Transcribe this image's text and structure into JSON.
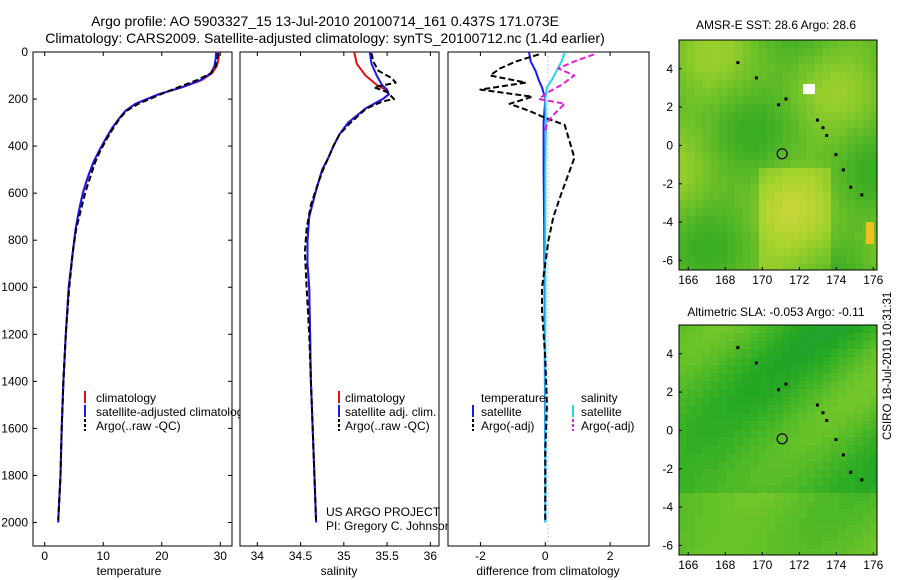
{
  "header": {
    "line1": "Argo profile: AO 5903327_15 13-Jul-2010 20100714_161 0.437S 171.073E",
    "line2": "Climatology: CARS2009. Satellite-adjusted climatology: synTS_20100712.nc (1.4d earlier)"
  },
  "side_text": "CSIRO 18-Jul-2010 10:31:31",
  "project": {
    "line1": "US ARGO PROJECT",
    "line2": "PI: Gregory C. Johnson"
  },
  "colors": {
    "climatology": "#e01010",
    "satellite": "#1a1aee",
    "argo": "#000000",
    "satellite_salinity": "#22d8e8",
    "argo_salinity": "#e020d8",
    "map_base": "#44cc33",
    "map_land": "#ffffff"
  },
  "chart_data": [
    {
      "id": "temperature",
      "type": "line",
      "xlabel": "temperature",
      "ylabel": "",
      "xlim": [
        -2,
        32
      ],
      "ylim": [
        2100,
        0
      ],
      "y_reversed": true,
      "xticks": [
        0,
        10,
        20,
        30
      ],
      "yticks": [
        0,
        200,
        400,
        600,
        800,
        1000,
        1200,
        1400,
        1600,
        1800,
        2000
      ],
      "legend": {
        "position": "lower-right",
        "entries": [
          "climatology",
          "satellite-adjusted climatology",
          "Argo(..raw -QC)"
        ]
      },
      "series": [
        {
          "name": "climatology",
          "color": "#e01010",
          "style": "solid",
          "x": [
            29.8,
            29.7,
            29.4,
            28.6,
            26.8,
            23.5,
            19.5,
            15.5,
            13.8,
            12.8,
            11.6,
            10.4,
            9.3,
            8.3,
            7.4,
            6.5,
            5.8,
            5.3,
            4.8,
            4.1,
            3.6,
            3.2,
            2.9,
            2.7,
            2.5,
            2.3
          ],
          "y": [
            0,
            30,
            60,
            90,
            120,
            150,
            180,
            220,
            250,
            280,
            320,
            370,
            420,
            470,
            530,
            600,
            680,
            750,
            850,
            1000,
            1200,
            1400,
            1600,
            1800,
            1900,
            2000
          ]
        },
        {
          "name": "satellite-adjusted climatology",
          "color": "#1a1aee",
          "style": "solid",
          "x": [
            29.3,
            29.2,
            29.0,
            28.4,
            26.6,
            23.4,
            19.4,
            15.5,
            13.8,
            12.8,
            11.6,
            10.4,
            9.3,
            8.3,
            7.4,
            6.5,
            5.8,
            5.3,
            4.8,
            4.1,
            3.6,
            3.2,
            2.9,
            2.7,
            2.5,
            2.3
          ],
          "y": [
            0,
            30,
            60,
            90,
            120,
            150,
            180,
            220,
            250,
            280,
            320,
            370,
            420,
            470,
            530,
            600,
            680,
            750,
            850,
            1000,
            1200,
            1400,
            1600,
            1800,
            1900,
            2000
          ]
        },
        {
          "name": "Argo(..raw -QC)",
          "color": "#000000",
          "style": "dashed",
          "x": [
            29.6,
            29.5,
            29.2,
            28.4,
            26.0,
            22.8,
            19.8,
            16.0,
            14.0,
            12.9,
            11.8,
            10.6,
            9.5,
            8.6,
            7.8,
            6.9,
            6.1,
            5.4,
            4.8,
            4.2,
            3.6,
            3.2,
            2.9,
            2.7,
            2.5,
            2.3
          ],
          "y": [
            5,
            30,
            60,
            90,
            120,
            150,
            180,
            220,
            250,
            280,
            320,
            370,
            420,
            470,
            530,
            600,
            680,
            750,
            850,
            1000,
            1200,
            1400,
            1600,
            1800,
            1900,
            1990
          ]
        }
      ]
    },
    {
      "id": "salinity",
      "type": "line",
      "xlabel": "salinity",
      "ylabel": "",
      "xlim": [
        33.8,
        36.1
      ],
      "ylim": [
        2100,
        0
      ],
      "y_reversed": true,
      "xticks": [
        34,
        34.5,
        35,
        35.5,
        36
      ],
      "legend": {
        "position": "lower-right",
        "entries": [
          "climatology",
          "satellite adj. clim.",
          "Argo(..raw -QC)"
        ]
      },
      "series": [
        {
          "name": "climatology",
          "color": "#e01010",
          "style": "solid",
          "x": [
            35.12,
            35.15,
            35.25,
            35.38,
            35.48,
            35.52,
            35.45,
            35.25,
            35.05,
            34.95,
            34.88,
            34.82,
            34.75,
            34.71,
            34.67,
            34.6,
            34.58,
            34.58,
            34.6,
            34.61,
            34.62,
            34.64,
            34.66,
            34.68
          ],
          "y": [
            0,
            50,
            100,
            140,
            160,
            180,
            200,
            240,
            300,
            350,
            400,
            450,
            500,
            550,
            600,
            700,
            800,
            900,
            1000,
            1200,
            1400,
            1600,
            1800,
            2000
          ]
        },
        {
          "name": "satellite adj. clim.",
          "color": "#1a1aee",
          "style": "solid",
          "x": [
            35.3,
            35.32,
            35.38,
            35.44,
            35.5,
            35.52,
            35.45,
            35.25,
            35.05,
            34.95,
            34.88,
            34.82,
            34.75,
            34.71,
            34.67,
            34.6,
            34.58,
            34.58,
            34.6,
            34.61,
            34.62,
            34.64,
            34.66,
            34.68
          ],
          "y": [
            0,
            50,
            100,
            140,
            160,
            180,
            200,
            240,
            300,
            350,
            400,
            450,
            500,
            550,
            600,
            700,
            800,
            900,
            1000,
            1200,
            1400,
            1600,
            1800,
            2000
          ]
        },
        {
          "name": "Argo(..raw -QC)",
          "color": "#000000",
          "style": "dashed",
          "x": [
            35.32,
            35.34,
            35.4,
            35.55,
            35.6,
            35.35,
            35.5,
            35.58,
            35.45,
            35.26,
            35.08,
            34.95,
            34.88,
            34.82,
            34.76,
            34.71,
            34.62,
            34.57,
            34.55,
            34.57,
            34.6,
            34.62,
            34.64,
            34.66,
            34.68
          ],
          "y": [
            5,
            40,
            80,
            110,
            130,
            150,
            170,
            200,
            210,
            240,
            300,
            350,
            400,
            450,
            500,
            550,
            650,
            750,
            850,
            1000,
            1200,
            1400,
            1600,
            1800,
            1990
          ]
        }
      ]
    },
    {
      "id": "difference",
      "type": "line",
      "xlabel": "difference from climatology",
      "ylabel": "",
      "xlim": [
        -3,
        3.2
      ],
      "ylim": [
        2100,
        0
      ],
      "y_reversed": true,
      "xticks": [
        -2,
        0,
        2
      ],
      "legend": {
        "position": "lower-left",
        "headers": [
          "temperature",
          "salinity"
        ],
        "entries": [
          "satellite",
          "Argo(-adj)",
          "satellite",
          "Argo(-adj)"
        ]
      },
      "series": [
        {
          "name": "temperature satellite",
          "color": "#1a1aee",
          "style": "solid",
          "x": [
            -0.5,
            -0.45,
            -0.3,
            -0.2,
            -0.1,
            0.0,
            -0.05,
            -0.05,
            -0.03,
            -0.02,
            -0.01,
            0.0,
            0.0
          ],
          "y": [
            0,
            40,
            80,
            120,
            150,
            200,
            300,
            500,
            800,
            1000,
            1400,
            1800,
            2000
          ]
        },
        {
          "name": "salinity satellite",
          "color": "#22d8e8",
          "style": "solid",
          "x": [
            0.6,
            0.5,
            0.35,
            0.2,
            0.05,
            0.0,
            0.02,
            0.0,
            0.0,
            0.0,
            0.0,
            0.0
          ],
          "y": [
            0,
            40,
            80,
            120,
            150,
            200,
            300,
            500,
            800,
            1200,
            1600,
            2000
          ]
        },
        {
          "name": "temperature Argo(-adj)",
          "color": "#000000",
          "style": "dashed",
          "x": [
            -0.2,
            -0.9,
            -1.4,
            -1.7,
            -0.6,
            -2.0,
            -0.4,
            -1.1,
            -0.5,
            0.0,
            0.6,
            0.9,
            0.5,
            0.25,
            0.1,
            0.0,
            -0.1,
            -0.1,
            0.0,
            0.05,
            0.0,
            0.0,
            0.0
          ],
          "y": [
            10,
            40,
            70,
            100,
            130,
            160,
            190,
            220,
            250,
            280,
            310,
            450,
            600,
            700,
            800,
            900,
            1000,
            1100,
            1300,
            1500,
            1700,
            1900,
            2000
          ]
        },
        {
          "name": "salinity Argo(-adj)",
          "color": "#e020d8",
          "style": "dashed",
          "x": [
            1.5,
            0.9,
            0.4,
            0.9,
            0.5,
            0.1,
            -0.2,
            0.6,
            0.3,
            0.05,
            0.0
          ],
          "y": [
            10,
            40,
            70,
            100,
            140,
            170,
            200,
            220,
            260,
            300,
            340
          ]
        }
      ]
    },
    {
      "id": "sst_map",
      "type": "heatmap",
      "title": "AMSR-E SST: 28.6 Argo: 28.6",
      "xlim": [
        165.5,
        176.2
      ],
      "ylim": [
        -6.5,
        5.5
      ],
      "xticks": [
        166,
        168,
        170,
        172,
        174,
        176
      ],
      "yticks": [
        -6,
        -4,
        -2,
        0,
        2,
        4
      ],
      "marker": {
        "lon": 171.073,
        "lat": -0.437
      }
    },
    {
      "id": "sla_map",
      "type": "heatmap",
      "title": "Altimetric SLA: -0.053 Argo: -0.11",
      "xlim": [
        165.5,
        176.2
      ],
      "ylim": [
        -6.5,
        5.5
      ],
      "xticks": [
        166,
        168,
        170,
        172,
        174,
        176
      ],
      "yticks": [
        -6,
        -4,
        -2,
        0,
        2,
        4
      ],
      "marker": {
        "lon": 171.073,
        "lat": -0.437
      }
    }
  ]
}
